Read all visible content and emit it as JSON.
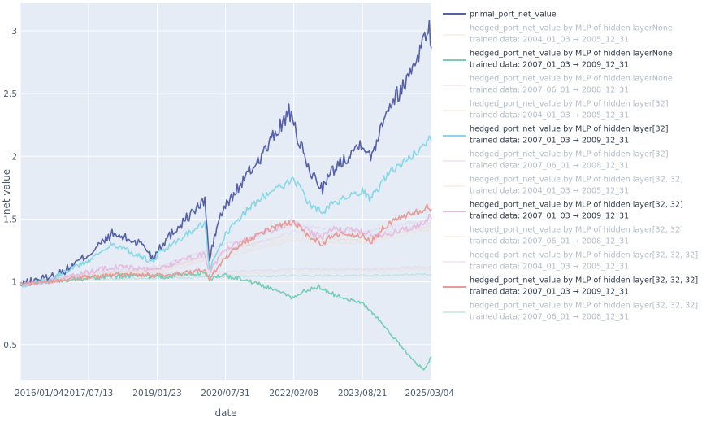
{
  "chart_data": {
    "type": "line",
    "xlabel": "date",
    "ylabel": "net value",
    "x_tick_labels": [
      "2016/01/04",
      "2017/07/13",
      "2019/01/23",
      "2020/07/31",
      "2022/02/08",
      "2023/08/21",
      "2025/03/04"
    ],
    "y_tick_labels": [
      "0.5",
      "1",
      "1.5",
      "2",
      "2.5",
      "3"
    ],
    "xlim": [
      "2016/01/04",
      "2025/03/04"
    ],
    "ylim": [
      0.22,
      3.22
    ],
    "grid": true,
    "legend_position": "right",
    "colors": {
      "plot_bg": "#e5ecf6",
      "grid": "#ffffff",
      "primal": "#5660a8",
      "teal_strong": "#86d8e6",
      "salmon": "#e89a94",
      "green_teal": "#76cdb6",
      "pink": "#e4bce0",
      "faded": "#f4d8c0"
    },
    "series": [
      {
        "name": "primal_port_net_value",
        "color": "#5660a8",
        "opacity": 1.0,
        "highlight": true,
        "points": [
          [
            "2016/01/04",
            0.97
          ],
          [
            "2016/03/01",
            1.0
          ],
          [
            "2016/09/01",
            1.04
          ],
          [
            "2017/01/01",
            1.09
          ],
          [
            "2017/07/13",
            1.22
          ],
          [
            "2018/01/20",
            1.38
          ],
          [
            "2018/10/01",
            1.3
          ],
          [
            "2018/12/24",
            1.18
          ],
          [
            "2019/01/23",
            1.26
          ],
          [
            "2019/07/01",
            1.43
          ],
          [
            "2020/02/15",
            1.65
          ],
          [
            "2020/03/23",
            1.17
          ],
          [
            "2020/06/01",
            1.48
          ],
          [
            "2020/07/31",
            1.6
          ],
          [
            "2021/01/01",
            1.82
          ],
          [
            "2021/06/01",
            2.02
          ],
          [
            "2021/12/30",
            2.35
          ],
          [
            "2022/02/08",
            2.24
          ],
          [
            "2022/06/15",
            1.88
          ],
          [
            "2022/09/30",
            1.75
          ],
          [
            "2023/01/01",
            1.9
          ],
          [
            "2023/08/21",
            2.12
          ],
          [
            "2023/10/27",
            1.98
          ],
          [
            "2024/03/01",
            2.38
          ],
          [
            "2024/07/15",
            2.55
          ],
          [
            "2024/12/01",
            2.85
          ],
          [
            "2025/02/15",
            3.05
          ],
          [
            "2025/03/04",
            2.86
          ]
        ]
      },
      {
        "name": "hedged_port_net_value by MLP of hidden layerNone",
        "trained": "trained data: 2004_01_03 → 2005_12_31",
        "color": "#f4d8c0",
        "opacity": 0.35,
        "highlight": false,
        "points": [
          [
            "2016/01/04",
            0.98
          ],
          [
            "2017/07/13",
            1.04
          ],
          [
            "2019/01/23",
            1.05
          ],
          [
            "2020/07/31",
            1.06
          ],
          [
            "2022/02/08",
            1.08
          ],
          [
            "2023/08/21",
            1.09
          ],
          [
            "2025/03/04",
            1.1
          ]
        ]
      },
      {
        "name": "hedged_port_net_value by MLP of hidden layerNone",
        "trained": "trained data: 2007_01_03 → 2009_12_31",
        "color": "#76cdb6",
        "opacity": 1.0,
        "highlight": true,
        "points": [
          [
            "2016/01/04",
            0.98
          ],
          [
            "2016/07/01",
            1.0
          ],
          [
            "2017/07/13",
            1.03
          ],
          [
            "2018/06/01",
            1.05
          ],
          [
            "2019/01/23",
            1.04
          ],
          [
            "2019/09/01",
            1.06
          ],
          [
            "2020/02/15",
            1.07
          ],
          [
            "2020/04/01",
            1.03
          ],
          [
            "2020/07/31",
            1.05
          ],
          [
            "2021/01/01",
            1.02
          ],
          [
            "2021/06/01",
            0.97
          ],
          [
            "2022/02/08",
            0.87
          ],
          [
            "2022/05/01",
            0.93
          ],
          [
            "2022/09/01",
            0.96
          ],
          [
            "2023/01/01",
            0.9
          ],
          [
            "2023/08/21",
            0.83
          ],
          [
            "2024/01/01",
            0.7
          ],
          [
            "2024/06/01",
            0.52
          ],
          [
            "2024/10/01",
            0.38
          ],
          [
            "2025/01/01",
            0.3
          ],
          [
            "2025/03/04",
            0.4
          ]
        ]
      },
      {
        "name": "hedged_port_net_value by MLP of hidden layerNone",
        "trained": "trained data: 2007_06_01 → 2008_12_31",
        "color": "#e4bce0",
        "opacity": 0.35,
        "highlight": false,
        "points": [
          [
            "2016/01/04",
            0.98
          ],
          [
            "2017/07/13",
            1.05
          ],
          [
            "2019/01/23",
            1.07
          ],
          [
            "2020/07/31",
            1.08
          ],
          [
            "2022/02/08",
            1.1
          ],
          [
            "2023/08/21",
            1.1
          ],
          [
            "2025/03/04",
            1.12
          ]
        ]
      },
      {
        "name": "hedged_port_net_value by MLP of hidden layer[32]",
        "trained": "trained data: 2004_01_03 → 2005_12_31",
        "color": "#f4d8c0",
        "opacity": 0.35,
        "highlight": false,
        "points": [
          [
            "2016/01/04",
            0.98
          ],
          [
            "2017/07/13",
            1.06
          ],
          [
            "2019/01/23",
            1.1
          ],
          [
            "2020/07/31",
            1.25
          ],
          [
            "2022/02/08",
            1.38
          ],
          [
            "2023/08/21",
            1.32
          ],
          [
            "2025/03/04",
            1.45
          ]
        ]
      },
      {
        "name": "hedged_port_net_value by MLP of hidden layer[32]",
        "trained": "trained data: 2007_01_03 → 2009_12_31",
        "color": "#86d8e6",
        "opacity": 1.0,
        "highlight": true,
        "points": [
          [
            "2016/01/04",
            0.97
          ],
          [
            "2016/09/01",
            1.02
          ],
          [
            "2017/07/13",
            1.17
          ],
          [
            "2018/01/20",
            1.3
          ],
          [
            "2018/12/24",
            1.16
          ],
          [
            "2019/01/23",
            1.22
          ],
          [
            "2019/07/01",
            1.33
          ],
          [
            "2020/02/15",
            1.47
          ],
          [
            "2020/03/23",
            1.09
          ],
          [
            "2020/07/31",
            1.38
          ],
          [
            "2021/01/01",
            1.55
          ],
          [
            "2021/06/01",
            1.68
          ],
          [
            "2022/02/08",
            1.82
          ],
          [
            "2022/06/15",
            1.62
          ],
          [
            "2022/09/30",
            1.55
          ],
          [
            "2023/01/01",
            1.63
          ],
          [
            "2023/08/21",
            1.72
          ],
          [
            "2023/10/27",
            1.65
          ],
          [
            "2024/03/01",
            1.85
          ],
          [
            "2024/07/15",
            1.95
          ],
          [
            "2024/12/01",
            2.05
          ],
          [
            "2025/02/15",
            2.14
          ],
          [
            "2025/03/04",
            2.12
          ]
        ]
      },
      {
        "name": "hedged_port_net_value by MLP of hidden layer[32]",
        "trained": "trained data: 2007_06_01 → 2008_12_31",
        "color": "#e4bce0",
        "opacity": 0.35,
        "highlight": false,
        "points": [
          [
            "2016/01/04",
            0.98
          ],
          [
            "2017/07/13",
            1.08
          ],
          [
            "2019/01/23",
            1.12
          ],
          [
            "2020/07/31",
            1.3
          ],
          [
            "2022/02/08",
            1.45
          ],
          [
            "2023/08/21",
            1.4
          ],
          [
            "2025/03/04",
            1.5
          ]
        ]
      },
      {
        "name": "hedged_port_net_value by MLP of hidden layer[32, 32]",
        "trained": "trained data: 2004_01_03 → 2005_12_31",
        "color": "#f4d8c0",
        "opacity": 0.35,
        "highlight": false,
        "points": [
          [
            "2016/01/04",
            0.98
          ],
          [
            "2017/07/13",
            1.05
          ],
          [
            "2019/01/23",
            1.08
          ],
          [
            "2020/07/31",
            1.2
          ],
          [
            "2022/02/08",
            1.33
          ],
          [
            "2023/08/21",
            1.3
          ],
          [
            "2025/03/04",
            1.42
          ]
        ]
      },
      {
        "name": "hedged_port_net_value by MLP of hidden layer[32, 32]",
        "trained": "trained data: 2007_01_03 → 2009_12_31",
        "color": "#e4bce0",
        "opacity": 1.0,
        "highlight": true,
        "points": [
          [
            "2016/01/04",
            0.98
          ],
          [
            "2016/09/01",
            1.0
          ],
          [
            "2017/07/13",
            1.08
          ],
          [
            "2018/01/20",
            1.12
          ],
          [
            "2019/01/23",
            1.1
          ],
          [
            "2019/09/01",
            1.18
          ],
          [
            "2020/02/15",
            1.22
          ],
          [
            "2020/03/23",
            1.08
          ],
          [
            "2020/07/31",
            1.26
          ],
          [
            "2021/01/01",
            1.33
          ],
          [
            "2021/06/01",
            1.38
          ],
          [
            "2022/02/08",
            1.48
          ],
          [
            "2022/06/15",
            1.4
          ],
          [
            "2022/09/30",
            1.36
          ],
          [
            "2023/01/01",
            1.42
          ],
          [
            "2023/08/21",
            1.4
          ],
          [
            "2024/01/01",
            1.36
          ],
          [
            "2024/06/01",
            1.4
          ],
          [
            "2024/12/01",
            1.46
          ],
          [
            "2025/02/15",
            1.52
          ],
          [
            "2025/03/04",
            1.5
          ]
        ]
      },
      {
        "name": "hedged_port_net_value by MLP of hidden layer[32, 32]",
        "trained": "trained data: 2007_06_01 → 2008_12_31",
        "color": "#f4d8c0",
        "opacity": 0.35,
        "highlight": false,
        "points": [
          [
            "2016/01/04",
            0.98
          ],
          [
            "2017/07/13",
            1.06
          ],
          [
            "2019/01/23",
            1.09
          ],
          [
            "2020/07/31",
            1.22
          ],
          [
            "2022/02/08",
            1.35
          ],
          [
            "2023/08/21",
            1.33
          ],
          [
            "2025/03/04",
            1.44
          ]
        ]
      },
      {
        "name": "hedged_port_net_value by MLP of hidden layer[32, 32, 32]",
        "trained": "trained data: 2004_01_03 → 2005_12_31",
        "color": "#e4bce0",
        "opacity": 0.35,
        "highlight": false,
        "points": [
          [
            "2016/01/04",
            0.98
          ],
          [
            "2017/07/13",
            1.07
          ],
          [
            "2019/01/23",
            1.1
          ],
          [
            "2020/07/31",
            1.24
          ],
          [
            "2022/02/08",
            1.4
          ],
          [
            "2023/08/21",
            1.36
          ],
          [
            "2025/03/04",
            1.47
          ]
        ]
      },
      {
        "name": "hedged_port_net_value by MLP of hidden layer[32, 32, 32]",
        "trained": "trained data: 2007_01_03 → 2009_12_31",
        "color": "#e89a94",
        "opacity": 1.0,
        "highlight": true,
        "points": [
          [
            "2016/01/04",
            0.98
          ],
          [
            "2016/09/01",
            1.0
          ],
          [
            "2017/07/13",
            1.04
          ],
          [
            "2018/06/01",
            1.06
          ],
          [
            "2019/01/23",
            1.05
          ],
          [
            "2019/09/01",
            1.07
          ],
          [
            "2020/02/15",
            1.09
          ],
          [
            "2020/03/23",
            1.02
          ],
          [
            "2020/07/31",
            1.2
          ],
          [
            "2021/01/01",
            1.32
          ],
          [
            "2021/06/01",
            1.4
          ],
          [
            "2022/02/08",
            1.48
          ],
          [
            "2022/06/15",
            1.36
          ],
          [
            "2022/09/30",
            1.3
          ],
          [
            "2023/01/01",
            1.38
          ],
          [
            "2023/08/21",
            1.37
          ],
          [
            "2023/10/27",
            1.32
          ],
          [
            "2024/03/01",
            1.45
          ],
          [
            "2024/07/15",
            1.52
          ],
          [
            "2024/12/01",
            1.57
          ],
          [
            "2025/02/15",
            1.6
          ],
          [
            "2025/03/04",
            1.58
          ]
        ]
      },
      {
        "name": "hedged_port_net_value by MLP of hidden layer[32, 32, 32]",
        "trained": "trained data: 2007_06_01 → 2008_12_31",
        "color": "#76cdb6",
        "opacity": 0.35,
        "highlight": false,
        "points": [
          [
            "2016/01/04",
            0.98
          ],
          [
            "2017/07/13",
            1.02
          ],
          [
            "2019/01/23",
            1.03
          ],
          [
            "2020/07/31",
            1.04
          ],
          [
            "2022/02/08",
            1.05
          ],
          [
            "2023/08/21",
            1.05
          ],
          [
            "2025/03/04",
            1.06
          ]
        ]
      }
    ]
  }
}
